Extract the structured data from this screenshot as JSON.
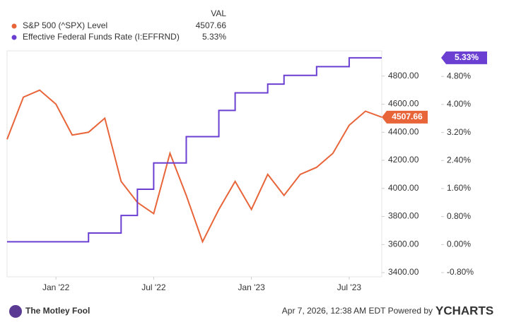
{
  "chart_data": {
    "type": "line",
    "value_header": "VAL",
    "x": [
      "2021-10",
      "2021-11",
      "2021-12",
      "2022-01",
      "2022-02",
      "2022-03",
      "2022-04",
      "2022-05",
      "2022-06",
      "2022-07",
      "2022-08",
      "2022-09",
      "2022-10",
      "2022-11",
      "2022-12",
      "2023-01",
      "2023-02",
      "2023-03",
      "2023-04",
      "2023-05",
      "2023-06",
      "2023-07",
      "2023-08",
      "2023-09"
    ],
    "xlim": [
      "2021-10",
      "2023-09"
    ],
    "xticks": [
      {
        "value": "2022-01",
        "label": "Jan '22"
      },
      {
        "value": "2022-07",
        "label": "Jul '22"
      },
      {
        "value": "2023-01",
        "label": "Jan '23"
      },
      {
        "value": "2023-07",
        "label": "Jul '23"
      }
    ],
    "ylim": [
      3370,
      4980
    ],
    "yticks": [
      {
        "value": 3400,
        "label": "3400.00"
      },
      {
        "value": 3600,
        "label": "3600.00"
      },
      {
        "value": 3800,
        "label": "3800.00"
      },
      {
        "value": 4000,
        "label": "4000.00"
      },
      {
        "value": 4200,
        "label": "4200.00"
      },
      {
        "value": 4400,
        "label": "4400.00"
      },
      {
        "value": 4600,
        "label": "4600.00"
      },
      {
        "value": 4800,
        "label": "4800.00"
      }
    ],
    "y2lim": [
      -0.92,
      5.53
    ],
    "y2ticks": [
      {
        "value": -0.8,
        "label": "-0.80%"
      },
      {
        "value": 0,
        "label": "0.00%"
      },
      {
        "value": 0.8,
        "label": "0.80%"
      },
      {
        "value": 1.6,
        "label": "1.60%"
      },
      {
        "value": 2.4,
        "label": "2.40%"
      },
      {
        "value": 3.2,
        "label": "3.20%"
      },
      {
        "value": 4.0,
        "label": "4.00%"
      },
      {
        "value": 4.8,
        "label": "4.80%"
      }
    ],
    "grid": false,
    "series": [
      {
        "name": "S&P 500 (^SPX) Level",
        "color": "#e8653a",
        "values": [
          4350,
          4650,
          4700,
          4600,
          4380,
          4400,
          4500,
          4050,
          3900,
          3820,
          4250,
          3950,
          3620,
          3850,
          4050,
          3850,
          4100,
          3950,
          4100,
          4150,
          4250,
          4450,
          4550,
          4507.66
        ]
      },
      {
        "name": "Effective Federal Funds Rate (I:EFFRND)",
        "color": "#6a3fd1",
        "axis": "y2",
        "step": true,
        "values": [
          0.08,
          0.08,
          0.08,
          0.08,
          0.08,
          0.33,
          0.33,
          0.83,
          1.58,
          2.33,
          2.33,
          3.08,
          3.08,
          3.83,
          4.33,
          4.33,
          4.58,
          4.83,
          4.83,
          5.08,
          5.08,
          5.33,
          5.33,
          5.33
        ],
        "value_labels": [
          null,
          null,
          null,
          null,
          null,
          null,
          null,
          null,
          null,
          null,
          null,
          null,
          null,
          null,
          null,
          null,
          null,
          null,
          null,
          null,
          null,
          null,
          null,
          "5.33%"
        ]
      }
    ]
  },
  "footer": {
    "brand": "The Motley Fool",
    "timestamp": "Apr 7, 2026, 12:38 AM EDT Powered by",
    "provider": "YCHARTS"
  }
}
